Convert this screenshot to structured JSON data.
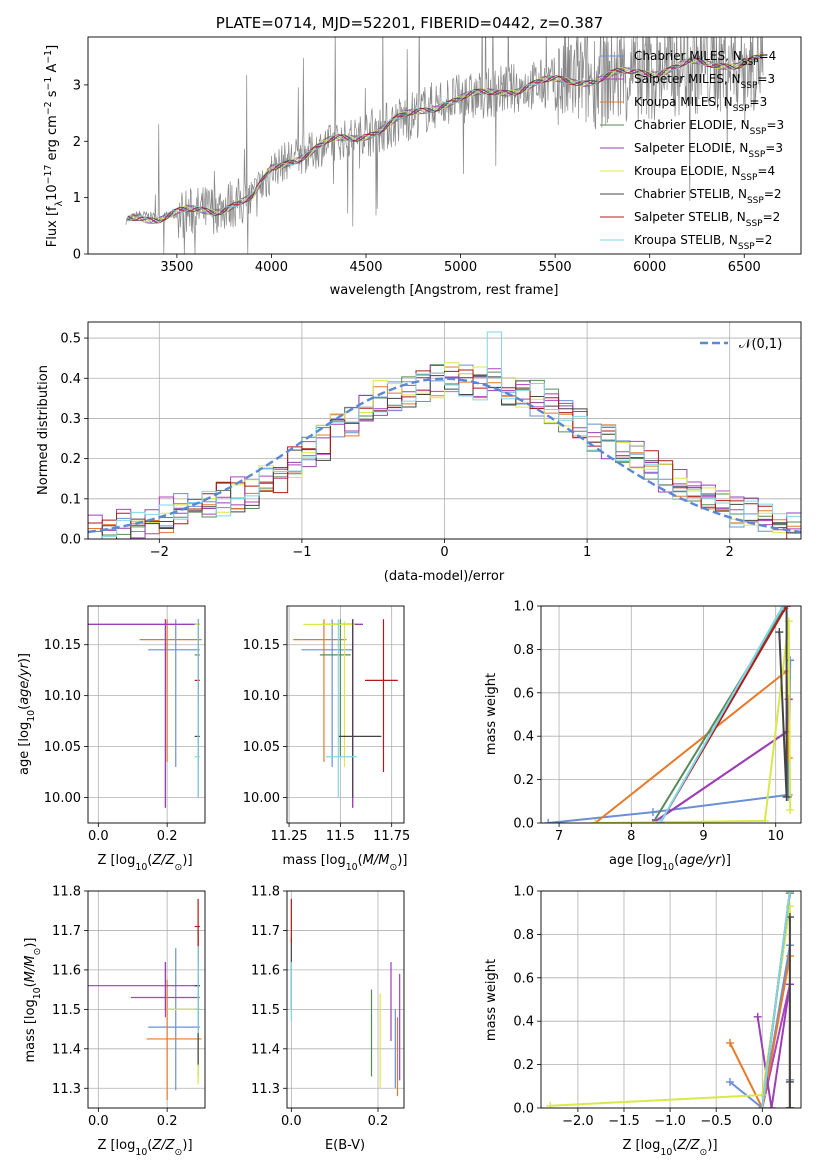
{
  "colors": {
    "Chabrier MILES": "#6a8fd8",
    "Salpeter MILES": "#b040c0",
    "Kroupa MILES": "#e57a2a",
    "Chabrier ELODIE": "#5a8a5a",
    "Salpeter ELODIE": "#9b3fb5",
    "Kroupa ELODIE": "#d9e84a",
    "Chabrier STELIB": "#444444",
    "Salpeter STELIB": "#b01a1a",
    "Kroupa STELIB": "#7fd6e8",
    "normal": "#5b88d6",
    "grid": "#b0b0b0"
  },
  "chart_data": [
    {
      "type": "line",
      "title": "PLATE=0714, MJD=52201, FIBERID=0442, z=0.387",
      "xlabel": "wavelength [Angstrom, rest frame]",
      "ylabel": "Flux [fλ10⁻¹⁷ erg cm⁻² s⁻¹ A⁻¹]",
      "xlim": [
        3030,
        6800
      ],
      "ylim": [
        0,
        3.85
      ],
      "xticks": [
        3500,
        4000,
        4500,
        5000,
        5500,
        6000,
        6500
      ],
      "yticks": [
        0,
        1,
        2,
        3
      ],
      "grid": false,
      "legend_position": "top-right",
      "x": [
        3230,
        3300,
        3400,
        3500,
        3600,
        3700,
        3800,
        3900,
        4000,
        4100,
        4200,
        4300,
        4400,
        4500,
        4600,
        4700,
        4800,
        4900,
        5000,
        5100,
        5200,
        5300,
        5400,
        5500,
        5600,
        5700,
        5800,
        5900,
        6000,
        6100,
        6200,
        6300,
        6400,
        6500,
        6600
      ],
      "model_y": [
        0.6,
        0.7,
        0.65,
        0.7,
        0.75,
        0.8,
        0.9,
        0.95,
        1.5,
        1.7,
        1.8,
        1.95,
        2.05,
        2.15,
        2.25,
        2.4,
        2.55,
        2.7,
        2.75,
        2.8,
        2.9,
        2.95,
        3.0,
        3.05,
        3.1,
        3.1,
        3.15,
        3.2,
        3.25,
        3.3,
        3.35,
        3.35,
        3.4,
        3.4,
        3.45
      ],
      "series": [
        {
          "name": "Chabrier MILES, N$_{SSP}$=4"
        },
        {
          "name": "Salpeter MILES, N$_{SSP}$=3"
        },
        {
          "name": "Kroupa MILES, N$_{SSP}$=3"
        },
        {
          "name": "Chabrier ELODIE, N$_{SSP}$=3"
        },
        {
          "name": "Salpeter ELODIE, N$_{SSP}$=3"
        },
        {
          "name": "Kroupa ELODIE, N$_{SSP}$=4"
        },
        {
          "name": "Chabrier STELIB, N$_{SSP}$=2"
        },
        {
          "name": "Salpeter STELIB, N$_{SSP}$=2"
        },
        {
          "name": "Kroupa STELIB, N$_{SSP}$=2"
        }
      ]
    },
    {
      "type": "line",
      "xlabel": "(data-model)/error",
      "ylabel": "Normed distribution",
      "xlim": [
        -2.5,
        2.5
      ],
      "ylim": [
        0,
        0.54
      ],
      "xticks": [
        -2,
        -1,
        0,
        1,
        2
      ],
      "yticks": [
        0.0,
        0.1,
        0.2,
        0.3,
        0.4,
        0.5
      ],
      "grid": true,
      "legend_position": "top-right",
      "legend": "$\\mathcal{N}(0,1)$",
      "bin_edges_start": -2.5,
      "bin_width": 0.1,
      "hist_base": [
        0.02,
        0.022,
        0.03,
        0.04,
        0.05,
        0.06,
        0.07,
        0.08,
        0.09,
        0.1,
        0.11,
        0.12,
        0.14,
        0.16,
        0.19,
        0.22,
        0.24,
        0.27,
        0.3,
        0.33,
        0.35,
        0.36,
        0.37,
        0.38,
        0.39,
        0.4,
        0.4,
        0.39,
        0.38,
        0.37,
        0.36,
        0.35,
        0.33,
        0.3,
        0.28,
        0.26,
        0.24,
        0.22,
        0.2,
        0.18,
        0.16,
        0.14,
        0.12,
        0.1,
        0.09,
        0.07,
        0.06,
        0.05,
        0.04,
        0.03
      ]
    },
    {
      "type": "scatter",
      "xlabel": "Z [log10(Z/Z⊙)]",
      "ylabel": "age  [log10(age/yr)]",
      "xlim": [
        -0.03,
        0.31
      ],
      "ylim": [
        9.975,
        10.188
      ],
      "xticks": [
        0.0,
        0.2
      ],
      "yticks": [
        10.0,
        10.05,
        10.1,
        10.15
      ],
      "grid": true,
      "points": [
        {
          "s": 0,
          "x": 0.225,
          "y": 10.145,
          "xerr": [
            0.08,
            0.07
          ],
          "yerr": [
            0.115,
            0.03
          ]
        },
        {
          "s": 1,
          "x": 0.195,
          "y": 10.17,
          "xerr": [
            0.27,
            0.1
          ],
          "yerr": [
            0.18,
            0.005
          ]
        },
        {
          "s": 2,
          "x": 0.2,
          "y": 10.155,
          "xerr": [
            0.08,
            0.1
          ],
          "yerr": [
            0.12,
            0.02
          ]
        },
        {
          "s": 3,
          "x": 0.29,
          "y": 10.14,
          "xerr": [
            0.01,
            0.005
          ],
          "yerr": [
            0.1,
            0.035
          ]
        },
        {
          "s": 4,
          "x": 0.195,
          "y": 10.17,
          "xerr": [
            0.27,
            0.1
          ],
          "yerr": [
            0.18,
            0.005
          ]
        },
        {
          "s": 5,
          "x": 0.29,
          "y": 10.17,
          "xerr": [
            0.01,
            0.005
          ],
          "yerr": [
            0.14,
            0.003
          ]
        },
        {
          "s": 6,
          "x": 0.29,
          "y": 10.06,
          "xerr": [
            0.01,
            0.005
          ],
          "yerr": [
            0.06,
            0.115
          ]
        },
        {
          "s": 7,
          "x": 0.29,
          "y": 10.115,
          "xerr": [
            0.01,
            0.005
          ],
          "yerr": [
            0.02,
            0.06
          ]
        },
        {
          "s": 8,
          "x": 0.29,
          "y": 10.04,
          "xerr": [
            0.01,
            0.005
          ],
          "yerr": [
            0.04,
            0.135
          ]
        }
      ]
    },
    {
      "type": "scatter",
      "xlabel": "mass [log10(M/M⊙)]",
      "xlim": [
        11.24,
        11.81
      ],
      "ylim": [
        9.975,
        10.188
      ],
      "xticks": [
        11.25,
        11.5,
        11.75
      ],
      "yticks": [
        10.0,
        10.05,
        10.1,
        10.15
      ],
      "grid": true,
      "points": [
        {
          "s": 0,
          "x": 11.46,
          "y": 10.145,
          "xerr": [
            0.15,
            0.1
          ],
          "yerr": [
            0.115,
            0.03
          ]
        },
        {
          "s": 1,
          "x": 11.56,
          "y": 10.17,
          "xerr": [
            0.15,
            0.05
          ],
          "yerr": [
            0.18,
            0.005
          ]
        },
        {
          "s": 2,
          "x": 11.42,
          "y": 10.155,
          "xerr": [
            0.15,
            0.11
          ],
          "yerr": [
            0.12,
            0.02
          ]
        },
        {
          "s": 3,
          "x": 11.5,
          "y": 10.14,
          "xerr": [
            0.1,
            0.05
          ],
          "yerr": [
            0.1,
            0.035
          ]
        },
        {
          "s": 4,
          "x": 11.56,
          "y": 10.17,
          "xerr": [
            0.1,
            0.05
          ],
          "yerr": [
            0.18,
            0.005
          ]
        },
        {
          "s": 5,
          "x": 11.52,
          "y": 10.17,
          "xerr": [
            0.2,
            0.05
          ],
          "yerr": [
            0.14,
            0.003
          ]
        },
        {
          "s": 6,
          "x": 11.56,
          "y": 10.06,
          "xerr": [
            0.07,
            0.14
          ],
          "yerr": [
            0.06,
            0.115
          ]
        },
        {
          "s": 7,
          "x": 11.71,
          "y": 10.115,
          "xerr": [
            0.09,
            0.07
          ],
          "yerr": [
            0.09,
            0.06
          ]
        },
        {
          "s": 8,
          "x": 11.49,
          "y": 10.04,
          "xerr": [
            0.06,
            0.09
          ],
          "yerr": [
            0.04,
            0.135
          ]
        }
      ]
    },
    {
      "type": "line",
      "xlabel": "age  [log10(age/yr)]",
      "ylabel": "mass weight",
      "xlim": [
        6.75,
        10.35
      ],
      "ylim": [
        0,
        1
      ],
      "xticks": [
        7,
        8,
        9,
        10
      ],
      "yticks": [
        0.0,
        0.2,
        0.4,
        0.6,
        0.8,
        1.0
      ],
      "grid": true,
      "series": [
        {
          "s": 0,
          "x": [
            6.85,
            8.3,
            10.18,
            10.2,
            10.17
          ],
          "y": [
            0.0,
            0.05,
            0.13,
            0.75,
            0.12
          ]
        },
        {
          "s": 1,
          "x": [
            8.3,
            10.15,
            10.18
          ],
          "y": [
            0.0,
            0.42,
            0.57
          ]
        },
        {
          "s": 2,
          "x": [
            7.5,
            10.15,
            10.18
          ],
          "y": [
            0.0,
            0.7,
            0.3
          ]
        },
        {
          "s": 3,
          "x": [
            8.3,
            10.12
          ],
          "y": [
            0.0,
            0.99
          ]
        },
        {
          "s": 4,
          "x": [
            8.3,
            10.15,
            10.18
          ],
          "y": [
            0.0,
            0.42,
            0.57
          ]
        },
        {
          "s": 5,
          "x": [
            7.5,
            9.85,
            10.18,
            10.2
          ],
          "y": [
            0.0,
            0.01,
            0.93,
            0.06
          ]
        },
        {
          "s": 6,
          "x": [
            10.05,
            10.15,
            10.15
          ],
          "y": [
            0.88,
            0.12,
            1.0
          ]
        },
        {
          "s": 7,
          "x": [
            8.4,
            10.15
          ],
          "y": [
            0.0,
            1.0
          ]
        },
        {
          "s": 8,
          "x": [
            8.4,
            10.1
          ],
          "y": [
            0.0,
            1.0
          ]
        }
      ]
    },
    {
      "type": "scatter",
      "xlabel": "Z [log10(Z/Z⊙)]",
      "ylabel": "mass [log10(M/M⊙)]",
      "xlim": [
        -0.03,
        0.31
      ],
      "ylim": [
        11.25,
        11.8
      ],
      "xticks": [
        0.0,
        0.2
      ],
      "yticks": [
        11.3,
        11.4,
        11.5,
        11.6,
        11.7,
        11.8
      ],
      "grid": true,
      "points": [
        {
          "s": 0,
          "x": 0.225,
          "y": 11.455,
          "xerr": [
            0.08,
            0.07
          ],
          "yerr": [
            0.16,
            0.2
          ]
        },
        {
          "s": 1,
          "x": 0.195,
          "y": 11.53,
          "xerr": [
            0.1,
            0.1
          ],
          "yerr": [
            0.05,
            0.09
          ]
        },
        {
          "s": 2,
          "x": 0.2,
          "y": 11.425,
          "xerr": [
            0.06,
            0.1
          ],
          "yerr": [
            0.155,
            0.15
          ]
        },
        {
          "s": 3,
          "x": 0.29,
          "y": 11.5,
          "xerr": [
            0.09,
            0.005
          ],
          "yerr": [
            0.17,
            0.09
          ]
        },
        {
          "s": 4,
          "x": 0.195,
          "y": 11.56,
          "xerr": [
            0.27,
            0.1
          ],
          "yerr": [
            0.06,
            0.06
          ]
        },
        {
          "s": 5,
          "x": 0.29,
          "y": 11.5,
          "xerr": [
            0.09,
            0.005
          ],
          "yerr": [
            0.19,
            0.15
          ]
        },
        {
          "s": 6,
          "x": 0.29,
          "y": 11.56,
          "xerr": [
            0.01,
            0.005
          ],
          "yerr": [
            0.2,
            0.14
          ]
        },
        {
          "s": 7,
          "x": 0.29,
          "y": 11.71,
          "xerr": [
            0.01,
            0.005
          ],
          "yerr": [
            0.09,
            0.07
          ]
        },
        {
          "s": 8,
          "x": 0.29,
          "y": 11.5,
          "xerr": [
            0.01,
            0.005
          ],
          "yerr": [
            0.06,
            0.16
          ]
        }
      ]
    },
    {
      "type": "scatter",
      "xlabel": "E(B-V)",
      "xlim": [
        -0.01,
        0.26
      ],
      "ylim": [
        11.25,
        11.8
      ],
      "xticks": [
        0.0,
        0.2
      ],
      "yticks": [
        11.3,
        11.4,
        11.5,
        11.6,
        11.7,
        11.8
      ],
      "grid": true,
      "points": [
        {
          "s": 0,
          "x": 0.24,
          "y": 11.4,
          "xerr": [
            0,
            0
          ],
          "yerr": [
            0.1,
            0.1
          ]
        },
        {
          "s": 1,
          "x": 0.25,
          "y": 11.48,
          "xerr": [
            0,
            0
          ],
          "yerr": [
            0.16,
            0.11
          ]
        },
        {
          "s": 2,
          "x": 0.245,
          "y": 11.38,
          "xerr": [
            0,
            0
          ],
          "yerr": [
            0.1,
            0.1
          ]
        },
        {
          "s": 3,
          "x": 0.185,
          "y": 11.44,
          "xerr": [
            0,
            0
          ],
          "yerr": [
            0.11,
            0.11
          ]
        },
        {
          "s": 4,
          "x": 0.23,
          "y": 11.52,
          "xerr": [
            0,
            0
          ],
          "yerr": [
            0.1,
            0.1
          ]
        },
        {
          "s": 5,
          "x": 0.205,
          "y": 11.42,
          "xerr": [
            0,
            0
          ],
          "yerr": [
            0.12,
            0.12
          ]
        },
        {
          "s": 6,
          "x": 0.0,
          "y": 11.6,
          "xerr": [
            0,
            0
          ],
          "yerr": [
            0.1,
            0.08
          ]
        },
        {
          "s": 7,
          "x": 0.0,
          "y": 11.7,
          "xerr": [
            0,
            0
          ],
          "yerr": [
            0.03,
            0.08
          ]
        },
        {
          "s": 8,
          "x": 0.0,
          "y": 11.55,
          "xerr": [
            0,
            0
          ],
          "yerr": [
            0.08,
            0.07
          ]
        }
      ]
    },
    {
      "type": "line",
      "xlabel": "Z [log10(Z/Z⊙)]",
      "ylabel": "mass weight",
      "xlim": [
        -2.4,
        0.42
      ],
      "ylim": [
        0,
        1
      ],
      "xticks": [
        -2.0,
        -1.5,
        -1.0,
        -0.5,
        0.0
      ],
      "yticks": [
        0.0,
        0.2,
        0.4,
        0.6,
        0.8,
        1.0
      ],
      "grid": true,
      "series": [
        {
          "s": 0,
          "x": [
            -0.35,
            0.0,
            0.3,
            0.3,
            0.3
          ],
          "y": [
            0.12,
            0.0,
            0.75,
            0.13,
            0.0
          ]
        },
        {
          "s": 1,
          "x": [
            0.0,
            0.3,
            0.3
          ],
          "y": [
            0.0,
            0.57,
            0.0
          ]
        },
        {
          "s": 2,
          "x": [
            -0.35,
            0.0,
            0.3,
            0.3
          ],
          "y": [
            0.3,
            0.0,
            0.7,
            0.0
          ]
        },
        {
          "s": 3,
          "x": [
            0.0,
            0.3
          ],
          "y": [
            0.0,
            0.99
          ]
        },
        {
          "s": 4,
          "x": [
            -0.05,
            0.1,
            0.3
          ],
          "y": [
            0.42,
            0.0,
            0.57
          ]
        },
        {
          "s": 5,
          "x": [
            -2.3,
            0.0,
            0.3,
            0.3
          ],
          "y": [
            0.01,
            0.06,
            0.93,
            0.0
          ]
        },
        {
          "s": 6,
          "x": [
            0.3,
            0.3,
            0.3
          ],
          "y": [
            0.88,
            0.12,
            0.0
          ]
        },
        {
          "s": 7,
          "x": [
            0.0,
            0.3
          ],
          "y": [
            0.0,
            1.0
          ]
        },
        {
          "s": 8,
          "x": [
            0.0,
            0.3
          ],
          "y": [
            0.0,
            1.0
          ]
        }
      ]
    }
  ]
}
